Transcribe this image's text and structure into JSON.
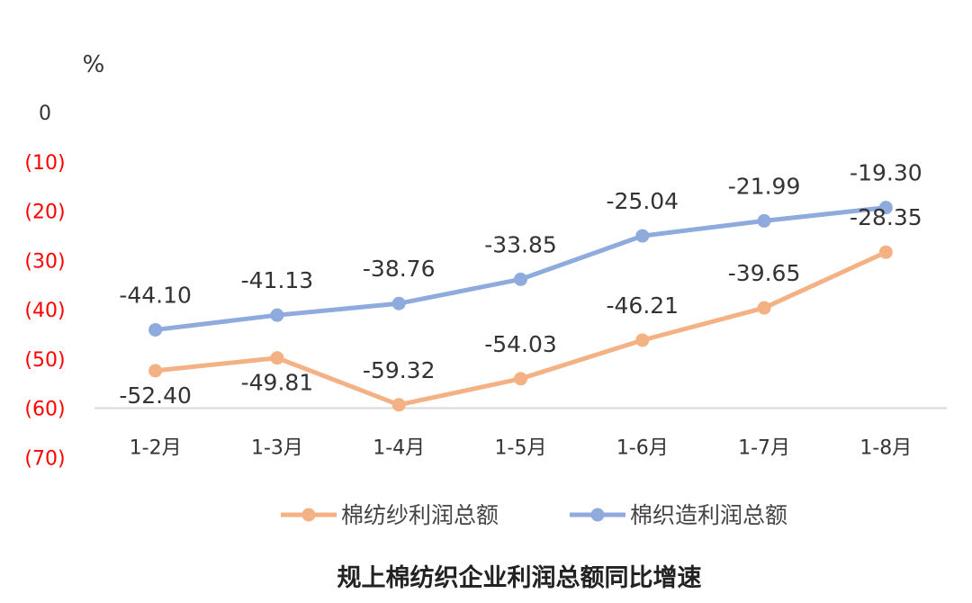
{
  "chart_data": {
    "type": "line",
    "title": "规上棉纺织企业利润总额同比增速",
    "unit_label": "%",
    "categories": [
      "1-2月",
      "1-3月",
      "1-4月",
      "1-5月",
      "1-6月",
      "1-7月",
      "1-8月"
    ],
    "y_ticks": [
      "0",
      "(10)",
      "(20)",
      "(30)",
      "(40)",
      "(50)",
      "(60)",
      "(70)"
    ],
    "y_tick_values": [
      0,
      -10,
      -20,
      -30,
      -40,
      -50,
      -60,
      -70
    ],
    "ylim": [
      -70,
      0
    ],
    "x_axis_at": -60,
    "grid": false,
    "legend_position": "bottom",
    "series": [
      {
        "name": "棉纺纱利润总额",
        "color": "#F4B183",
        "values": [
          -52.4,
          -49.81,
          -59.32,
          -54.03,
          -46.21,
          -39.65,
          -28.35
        ],
        "labels": [
          "-52.40",
          "-49.81",
          "-59.32",
          "-54.03",
          "-46.21",
          "-39.65",
          "-28.35"
        ]
      },
      {
        "name": "棉织造利润总额",
        "color": "#8FAADC",
        "values": [
          -44.1,
          -41.13,
          -38.76,
          -33.85,
          -25.04,
          -21.99,
          -19.3
        ],
        "labels": [
          "-44.10",
          "-41.13",
          "-38.76",
          "-33.85",
          "-25.04",
          "-21.99",
          "-19.30"
        ]
      }
    ],
    "colors": {
      "negative_tick": "#FF0000",
      "zero_tick": "#333333",
      "axis_line": "#D9D9D9"
    }
  }
}
